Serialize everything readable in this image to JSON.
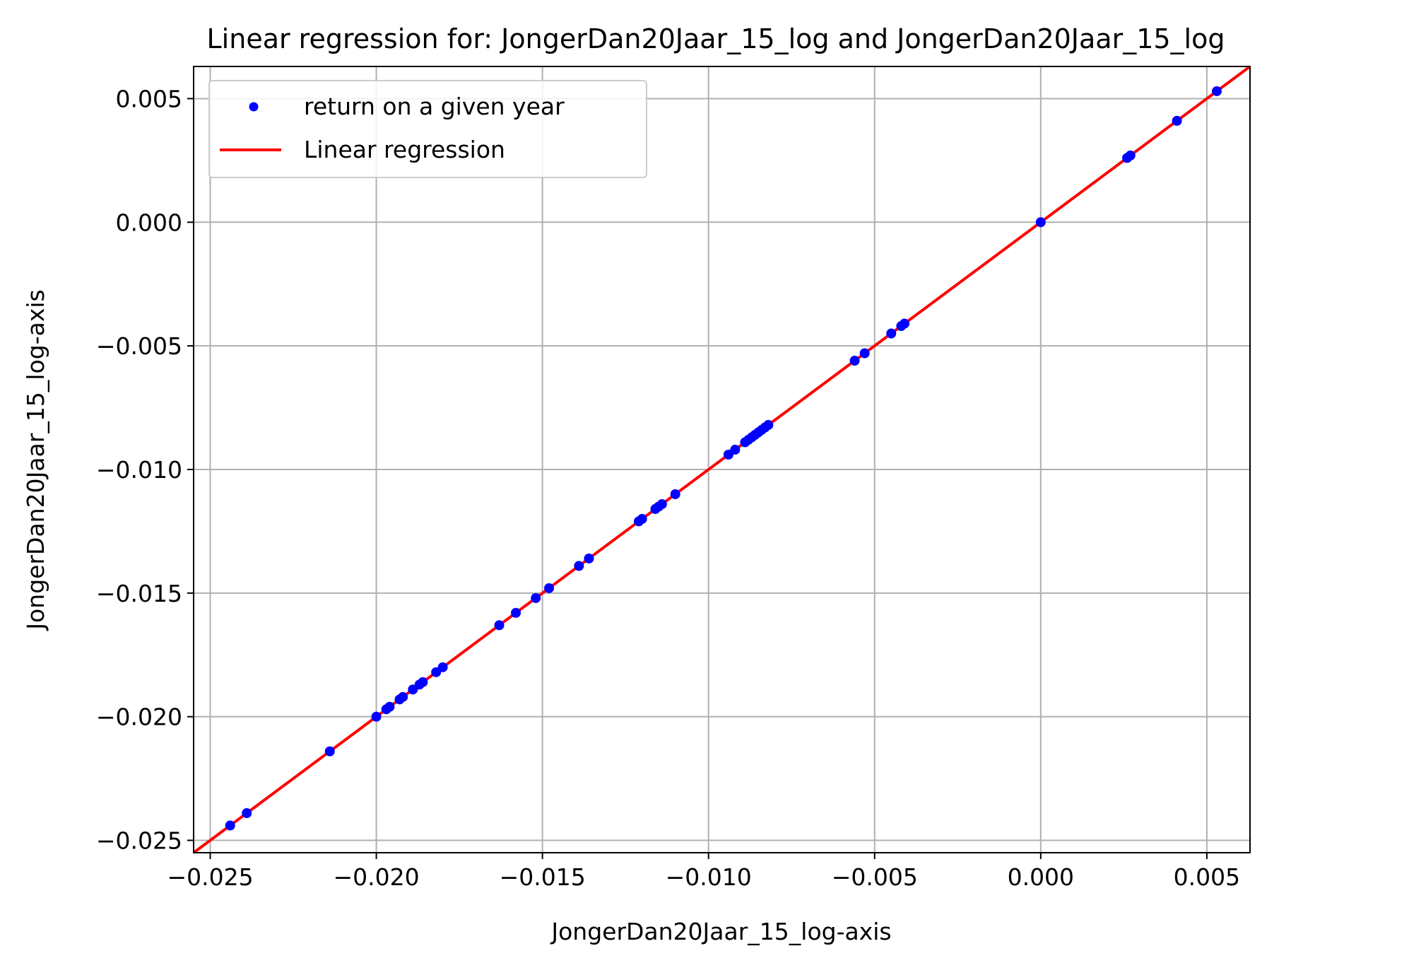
{
  "chart_data": {
    "type": "scatter",
    "title": "Linear regression for: JongerDan20Jaar_15_log and JongerDan20Jaar_15_log",
    "xlabel": "JongerDan20Jaar_15_log-axis",
    "ylabel": "JongerDan20Jaar_15_log-axis",
    "xlim": [
      -0.0255,
      0.0063
    ],
    "ylim": [
      -0.0255,
      0.0063
    ],
    "xticks": [
      -0.025,
      -0.02,
      -0.015,
      -0.01,
      -0.005,
      0.0,
      0.005
    ],
    "yticks": [
      -0.025,
      -0.02,
      -0.015,
      -0.01,
      -0.005,
      0.0,
      0.005
    ],
    "xtick_labels": [
      "−0.025",
      "−0.020",
      "−0.015",
      "−0.010",
      "−0.005",
      "0.000",
      "0.005"
    ],
    "ytick_labels": [
      "−0.025",
      "−0.020",
      "−0.015",
      "−0.010",
      "−0.005",
      "0.000",
      "0.005"
    ],
    "grid": true,
    "legend_position": "top-left",
    "series": [
      {
        "name": "return on a given year",
        "kind": "scatter",
        "color": "#0000ff",
        "x": [
          -0.0244,
          -0.0239,
          -0.0214,
          -0.02,
          -0.0197,
          -0.0196,
          -0.0193,
          -0.0192,
          -0.0189,
          -0.0187,
          -0.0186,
          -0.0182,
          -0.018,
          -0.0163,
          -0.0158,
          -0.0152,
          -0.0148,
          -0.0139,
          -0.0136,
          -0.0121,
          -0.012,
          -0.0116,
          -0.0115,
          -0.0114,
          -0.011,
          -0.0094,
          -0.0092,
          -0.0089,
          -0.0088,
          -0.0087,
          -0.0086,
          -0.0085,
          -0.0084,
          -0.0083,
          -0.0082,
          -0.0056,
          -0.0053,
          -0.0045,
          -0.0042,
          -0.0041,
          0.0,
          0.0026,
          0.0027,
          0.0041,
          0.0053
        ],
        "y": [
          -0.0244,
          -0.0239,
          -0.0214,
          -0.02,
          -0.0197,
          -0.0196,
          -0.0193,
          -0.0192,
          -0.0189,
          -0.0187,
          -0.0186,
          -0.0182,
          -0.018,
          -0.0163,
          -0.0158,
          -0.0152,
          -0.0148,
          -0.0139,
          -0.0136,
          -0.0121,
          -0.012,
          -0.0116,
          -0.0115,
          -0.0114,
          -0.011,
          -0.0094,
          -0.0092,
          -0.0089,
          -0.0088,
          -0.0087,
          -0.0086,
          -0.0085,
          -0.0084,
          -0.0083,
          -0.0082,
          -0.0056,
          -0.0053,
          -0.0045,
          -0.0042,
          -0.0041,
          0.0,
          0.0026,
          0.0027,
          0.0041,
          0.0053
        ]
      },
      {
        "name": "Linear regression",
        "kind": "line",
        "color": "#ff0000",
        "slope": 1.0,
        "intercept": 0.0
      }
    ]
  }
}
